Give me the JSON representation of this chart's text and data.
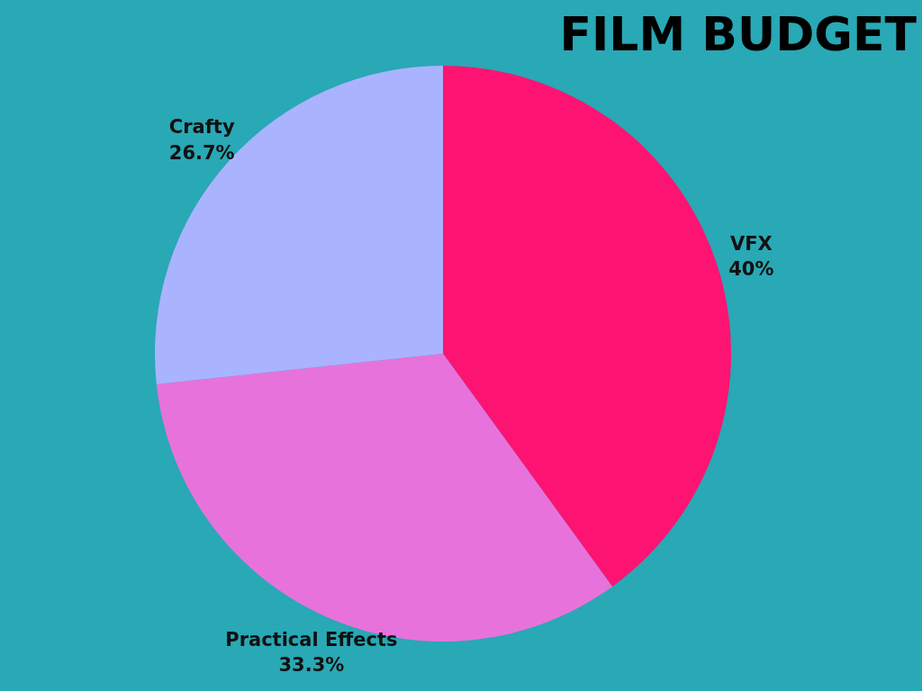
{
  "chart_data": {
    "type": "pie",
    "title": "FILM BUDGET",
    "categories": [
      "VFX",
      "Practical Effects",
      "Crafty"
    ],
    "values": [
      40,
      33.3,
      26.7
    ],
    "colors": [
      "#fd1472",
      "#e872dc",
      "#aab3fe"
    ],
    "value_labels": [
      "40%",
      "33.3%",
      "26.7%"
    ],
    "legend": false
  }
}
